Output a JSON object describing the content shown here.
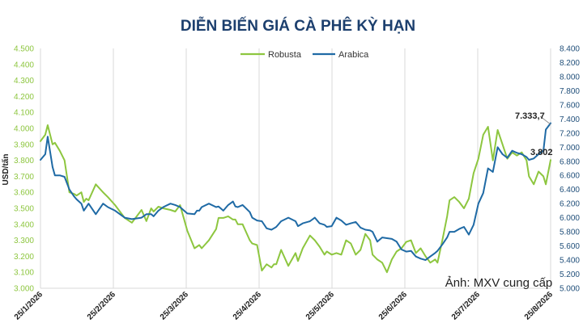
{
  "chart_data": {
    "type": "line",
    "title": "DIỄN BIẾN GIÁ CÀ PHÊ KỲ HẠN",
    "ylabel": "USD/tấn",
    "ylim_left": [
      3000,
      4500
    ],
    "ylim_right": [
      5000,
      8400
    ],
    "yticks_left": [
      "3.000",
      "3.100",
      "3.200",
      "3.300",
      "3.400",
      "3.500",
      "3.600",
      "3.700",
      "3.800",
      "3.900",
      "4.000",
      "4.100",
      "4.200",
      "4.300",
      "4.400",
      "4.500"
    ],
    "yticks_right": [
      "5.000",
      "5.200",
      "5.400",
      "5.600",
      "5.800",
      "6.000",
      "6.200",
      "6.400",
      "6.600",
      "6.800",
      "7.000",
      "7.200",
      "7.400",
      "7.600",
      "7.800",
      "8.000",
      "8.200",
      "8.400"
    ],
    "x_labels": [
      "25/1/2026",
      "25/2/2026",
      "25/3/2026",
      "25/4/2026",
      "25/5/2026",
      "25/6/2026",
      "25/7/2026",
      "25/8/2026"
    ],
    "x_range": [
      0,
      212
    ],
    "grid": "vertical",
    "legend": "top-center",
    "series": [
      {
        "name": "Robusta",
        "axis": "left",
        "color": "#8dc63f",
        "x": [
          0,
          2,
          3,
          5,
          6,
          8,
          10,
          12,
          14,
          15,
          17,
          18,
          19,
          20,
          23,
          26,
          28,
          31,
          35,
          38,
          42,
          44,
          46,
          47,
          49,
          51,
          54,
          56,
          58,
          61,
          64,
          65,
          66,
          67,
          70,
          73,
          74,
          76,
          78,
          80,
          81,
          82,
          84,
          87,
          88,
          90,
          92,
          94,
          96,
          97,
          98,
          100,
          103,
          106,
          107,
          109,
          112,
          114,
          116,
          118,
          119,
          121,
          123,
          125,
          127,
          129,
          131,
          133,
          135,
          137,
          138,
          140,
          142,
          144,
          146,
          148,
          150,
          152,
          154,
          156,
          158,
          160,
          162,
          164,
          165,
          167,
          169,
          170,
          172,
          174,
          176,
          178,
          180,
          182,
          184,
          186,
          188,
          190,
          192,
          194,
          196,
          198,
          200,
          202,
          203,
          205,
          207,
          209,
          210,
          212
        ],
        "y": [
          3920,
          3960,
          4020,
          3900,
          3910,
          3860,
          3800,
          3600,
          3590,
          3580,
          3600,
          3540,
          3560,
          3550,
          3650,
          3600,
          3570,
          3520,
          3440,
          3410,
          3490,
          3420,
          3500,
          3480,
          3510,
          3500,
          3490,
          3480,
          3520,
          3360,
          3250,
          3260,
          3270,
          3250,
          3300,
          3370,
          3440,
          3440,
          3450,
          3430,
          3430,
          3400,
          3400,
          3300,
          3280,
          3270,
          3110,
          3150,
          3130,
          3150,
          3150,
          3240,
          3140,
          3220,
          3170,
          3250,
          3330,
          3300,
          3260,
          3210,
          3230,
          3210,
          3220,
          3210,
          3300,
          3280,
          3210,
          3240,
          3340,
          3300,
          3210,
          3180,
          3160,
          3100,
          3180,
          3230,
          3250,
          3290,
          3300,
          3220,
          3250,
          3200,
          3160,
          3180,
          3160,
          3300,
          3450,
          3550,
          3570,
          3540,
          3500,
          3560,
          3720,
          3810,
          3960,
          4010,
          3800,
          3990,
          3900,
          3810,
          3850,
          3830,
          3850,
          3800,
          3700,
          3650,
          3730,
          3700,
          3650,
          3802
        ]
      },
      {
        "name": "Arabica",
        "axis": "right",
        "color": "#1f6aa5",
        "x": [
          0,
          2,
          3,
          5,
          6,
          8,
          10,
          12,
          14,
          15,
          17,
          18,
          19,
          20,
          23,
          26,
          28,
          31,
          35,
          38,
          42,
          44,
          46,
          47,
          49,
          51,
          54,
          56,
          58,
          61,
          64,
          65,
          66,
          67,
          70,
          73,
          74,
          76,
          78,
          80,
          81,
          82,
          84,
          87,
          88,
          90,
          92,
          94,
          96,
          97,
          98,
          100,
          103,
          106,
          107,
          109,
          112,
          114,
          116,
          118,
          119,
          121,
          123,
          125,
          127,
          129,
          131,
          133,
          135,
          137,
          138,
          140,
          142,
          144,
          146,
          148,
          150,
          152,
          154,
          156,
          158,
          160,
          162,
          164,
          165,
          167,
          169,
          170,
          172,
          174,
          176,
          178,
          180,
          182,
          184,
          186,
          188,
          190,
          192,
          194,
          196,
          198,
          200,
          202,
          203,
          205,
          207,
          209,
          210,
          212
        ],
        "y": [
          6820,
          6900,
          7150,
          6720,
          6600,
          6600,
          6580,
          6400,
          6300,
          6260,
          6200,
          6100,
          6150,
          6200,
          6050,
          6200,
          6150,
          6100,
          6000,
          5980,
          6000,
          6050,
          6050,
          6020,
          6100,
          6150,
          6200,
          6180,
          6150,
          6060,
          6050,
          6100,
          6100,
          6150,
          6200,
          6150,
          6160,
          6100,
          6180,
          6230,
          6160,
          6150,
          6180,
          6080,
          6000,
          5960,
          5950,
          5850,
          5830,
          5850,
          5870,
          5950,
          6000,
          5950,
          5880,
          5920,
          5950,
          6000,
          5920,
          5900,
          5870,
          5880,
          6000,
          5960,
          5900,
          5920,
          5940,
          5860,
          5830,
          5820,
          5800,
          5660,
          5720,
          5710,
          5700,
          5660,
          5550,
          5520,
          5530,
          5450,
          5420,
          5400,
          5450,
          5500,
          5530,
          5620,
          5720,
          5800,
          5800,
          5840,
          5870,
          5760,
          5900,
          6200,
          6350,
          6700,
          6650,
          7000,
          6900,
          6850,
          6950,
          6920,
          6900,
          6860,
          6820,
          6840,
          6900,
          6950,
          7250,
          7340
        ]
      }
    ],
    "annotations": [
      {
        "text": "7.333,7",
        "series": "Arabica"
      },
      {
        "text": "3.802",
        "series": "Robusta"
      }
    ]
  },
  "credit": "Ảnh: MXV cung cấp"
}
